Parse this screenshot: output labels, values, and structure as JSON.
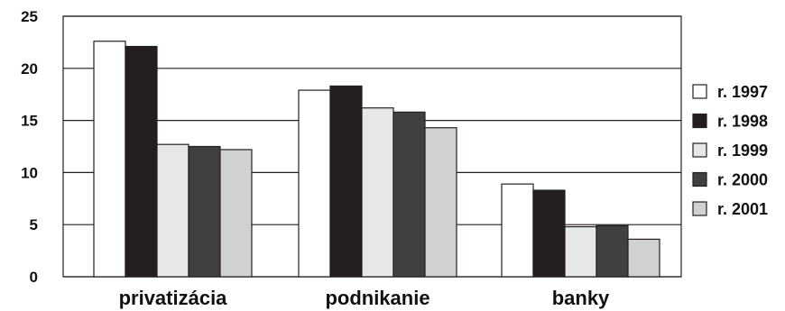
{
  "chart_data": {
    "type": "bar",
    "title": "",
    "xlabel": "",
    "ylabel": "",
    "ylim": [
      0,
      25
    ],
    "yticks": [
      "0",
      "5",
      "10",
      "15",
      "20",
      "25"
    ],
    "grid": "horizontal",
    "legend_position": "right",
    "categories": [
      "privatizácia",
      "podnikanie",
      "banky"
    ],
    "series": [
      {
        "name": "r. 1997",
        "color": "#ffffff",
        "values": [
          22.6,
          17.9,
          8.9
        ]
      },
      {
        "name": "r. 1998",
        "color": "#231f20",
        "values": [
          22.1,
          18.3,
          8.3
        ]
      },
      {
        "name": "r. 1999",
        "color": "#e6e7e9",
        "values": [
          12.7,
          16.2,
          4.8
        ]
      },
      {
        "name": "r. 2000",
        "color": "#404040",
        "values": [
          12.5,
          15.8,
          4.9
        ]
      },
      {
        "name": "r. 2001",
        "color": "#d0d1d3",
        "values": [
          12.2,
          14.3,
          3.6
        ]
      }
    ]
  }
}
